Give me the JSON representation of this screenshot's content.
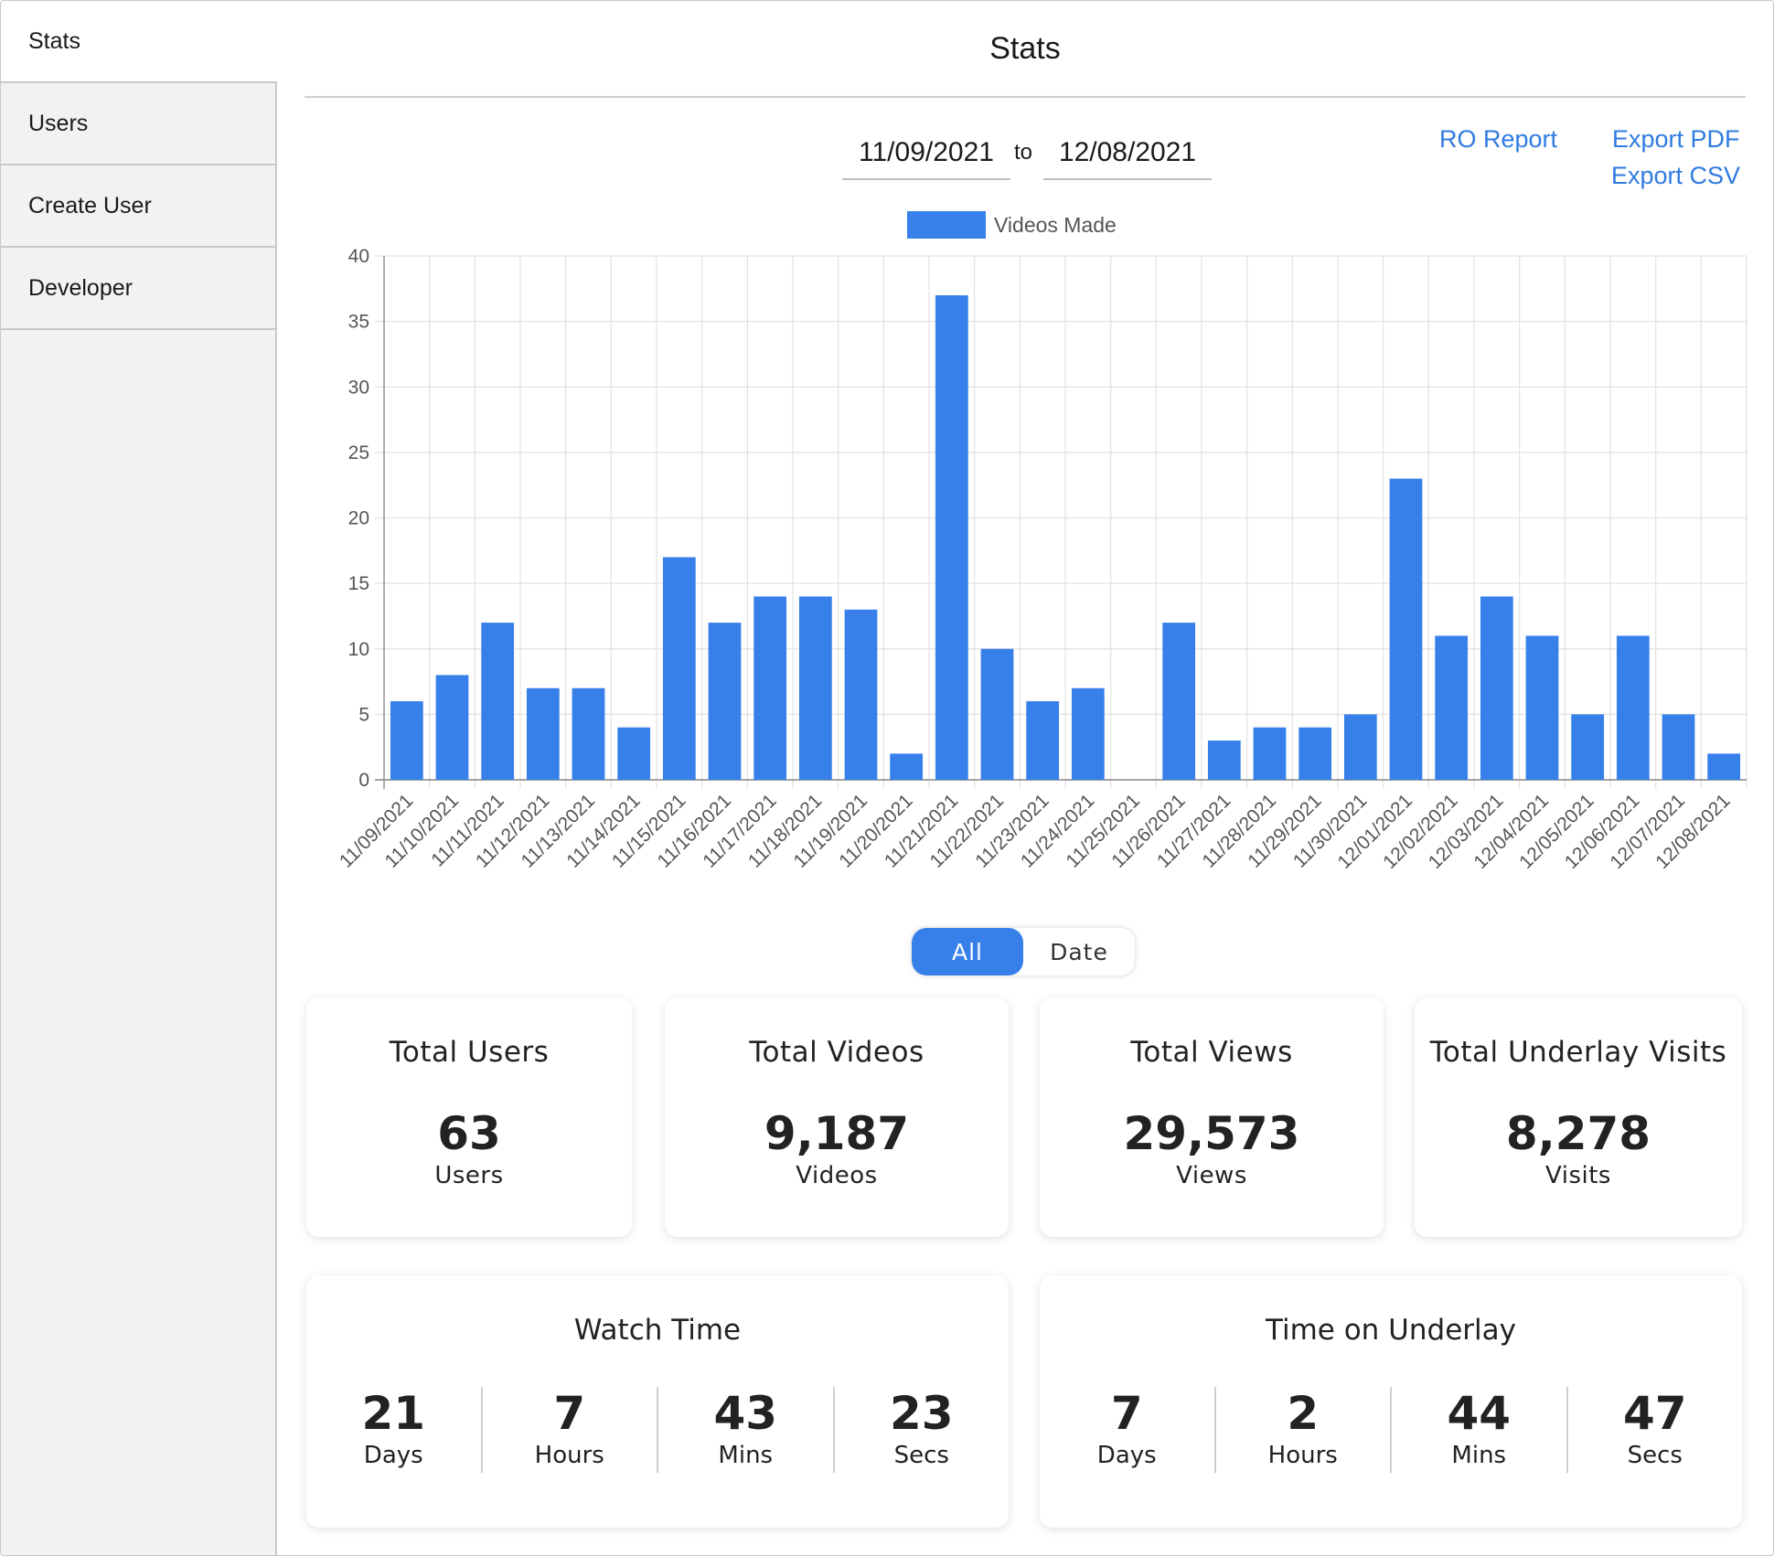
{
  "sidebar": {
    "items": [
      {
        "label": "Stats"
      },
      {
        "label": "Users"
      },
      {
        "label": "Create User"
      },
      {
        "label": "Developer"
      }
    ]
  },
  "header": {
    "title": "Stats"
  },
  "date_range": {
    "from": "11/09/2021",
    "to_label": "to",
    "to": "12/08/2021"
  },
  "actions": {
    "ro_report": "RO Report",
    "export_pdf": "Export PDF",
    "export_csv": "Export CSV"
  },
  "colors": {
    "accent": "#3780ea",
    "link": "#2f7be0"
  },
  "chart_data": {
    "type": "bar",
    "legend": "Videos Made",
    "legend_position": "top",
    "grid": true,
    "ylim": [
      0,
      40
    ],
    "yticks": [
      0,
      5,
      10,
      15,
      20,
      25,
      30,
      35,
      40
    ],
    "categories": [
      "11/09/2021",
      "11/10/2021",
      "11/11/2021",
      "11/12/2021",
      "11/13/2021",
      "11/14/2021",
      "11/15/2021",
      "11/16/2021",
      "11/17/2021",
      "11/18/2021",
      "11/19/2021",
      "11/20/2021",
      "11/21/2021",
      "11/22/2021",
      "11/23/2021",
      "11/24/2021",
      "11/25/2021",
      "11/26/2021",
      "11/27/2021",
      "11/28/2021",
      "11/29/2021",
      "11/30/2021",
      "12/01/2021",
      "12/02/2021",
      "12/03/2021",
      "12/04/2021",
      "12/05/2021",
      "12/06/2021",
      "12/07/2021",
      "12/08/2021"
    ],
    "values": [
      6,
      8,
      12,
      7,
      7,
      4,
      17,
      12,
      14,
      14,
      13,
      2,
      37,
      10,
      6,
      7,
      0,
      12,
      3,
      4,
      4,
      5,
      23,
      11,
      14,
      11,
      5,
      11,
      5,
      2
    ]
  },
  "toggle": {
    "all": "All",
    "date": "Date",
    "selected": "All"
  },
  "cards": {
    "users": {
      "title": "Total Users",
      "value": "63",
      "unit": "Users"
    },
    "videos": {
      "title": "Total Videos",
      "value": "9,187",
      "unit": "Videos"
    },
    "views": {
      "title": "Total Views",
      "value": "29,573",
      "unit": "Views"
    },
    "underlay": {
      "title": "Total Underlay Visits",
      "value": "8,278",
      "unit": "Visits"
    }
  },
  "watch_time": {
    "title": "Watch Time",
    "parts": [
      {
        "value": "21",
        "unit": "Days"
      },
      {
        "value": "7",
        "unit": "Hours"
      },
      {
        "value": "43",
        "unit": "Mins"
      },
      {
        "value": "23",
        "unit": "Secs"
      }
    ]
  },
  "underlay_time": {
    "title": "Time on Underlay",
    "parts": [
      {
        "value": "7",
        "unit": "Days"
      },
      {
        "value": "2",
        "unit": "Hours"
      },
      {
        "value": "44",
        "unit": "Mins"
      },
      {
        "value": "47",
        "unit": "Secs"
      }
    ]
  }
}
